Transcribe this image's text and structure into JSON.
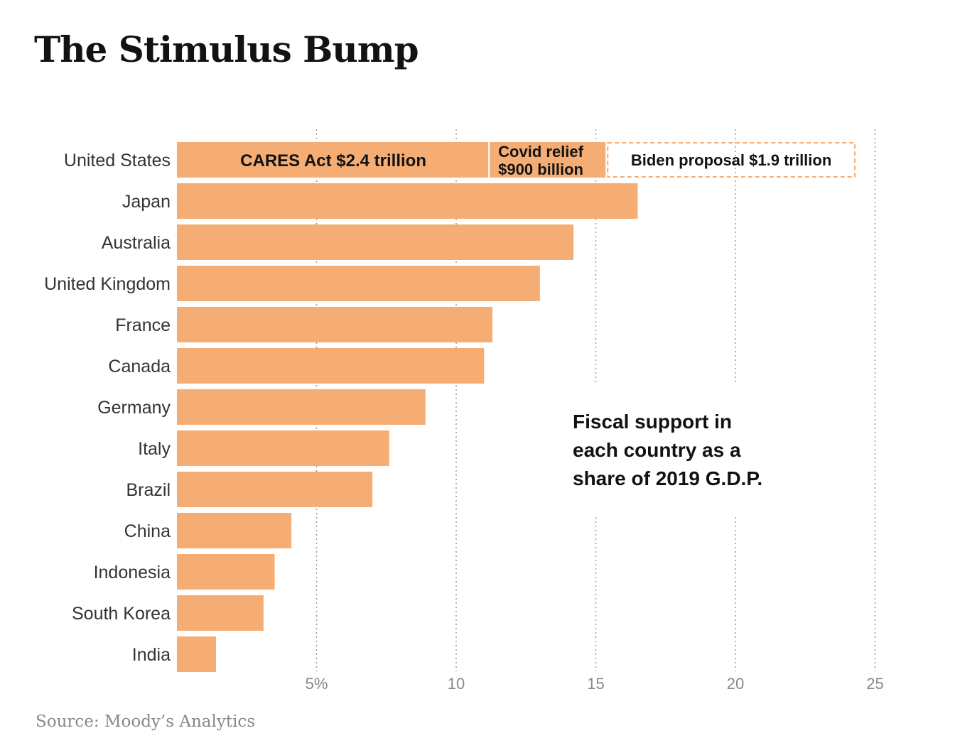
{
  "title": "The Stimulus Bump",
  "source": "Source: Moody’s Analytics",
  "annotation": [
    "Fiscal support in",
    "each country as a",
    "share of 2019 G.D.P."
  ],
  "colors": {
    "bar": "#f5ad73",
    "dashed_outline": "#f5ad73",
    "grid": "#999999",
    "text": "#121212"
  },
  "chart_data": {
    "type": "bar",
    "orientation": "horizontal",
    "x_ticks": [
      {
        "value": 5,
        "label": "5%"
      },
      {
        "value": 10,
        "label": "10"
      },
      {
        "value": 15,
        "label": "15"
      },
      {
        "value": 20,
        "label": "20"
      },
      {
        "value": 25,
        "label": "25"
      }
    ],
    "xlim": [
      0,
      25
    ],
    "grid": true,
    "us_segments": [
      {
        "label": "CARES Act $2.4 trillion",
        "value": 11.2,
        "style": "solid"
      },
      {
        "label": "Covid relief $900 billion",
        "label_lines": [
          "Covid relief",
          "$900 billion"
        ],
        "value": 4.2,
        "style": "solid"
      },
      {
        "label": "Biden proposal $1.9 trillion",
        "value": 8.9,
        "style": "dashed"
      }
    ],
    "categories": [
      "United States",
      "Japan",
      "Australia",
      "United Kingdom",
      "France",
      "Canada",
      "Germany",
      "Italy",
      "Brazil",
      "China",
      "Indonesia",
      "South Korea",
      "India"
    ],
    "values": [
      24.3,
      16.5,
      14.2,
      13.0,
      11.3,
      11.0,
      8.9,
      7.6,
      7.0,
      4.1,
      3.5,
      3.1,
      1.4
    ]
  }
}
